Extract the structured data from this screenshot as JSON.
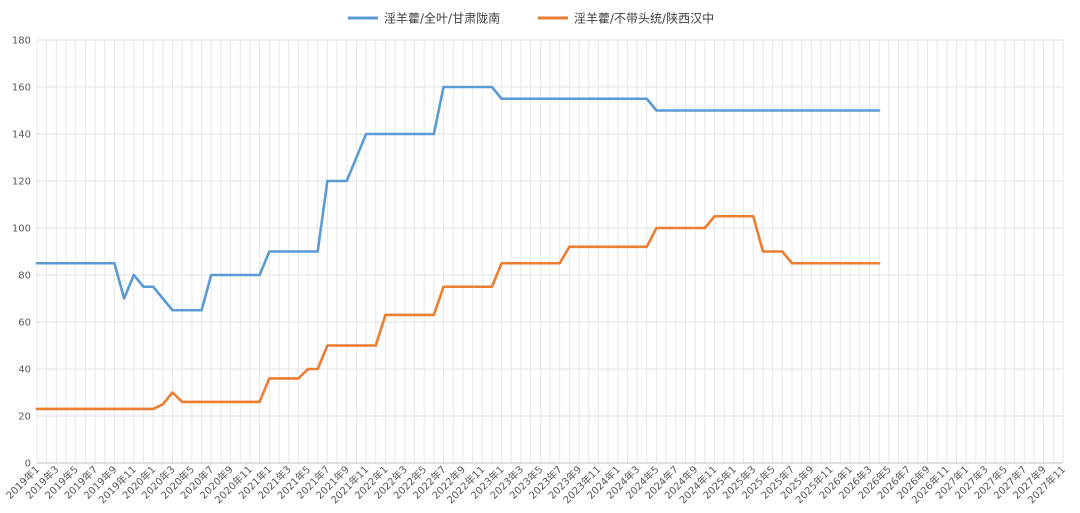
{
  "chart_data": {
    "type": "line",
    "title": "",
    "xlabel": "",
    "ylabel": "",
    "ylim": [
      0,
      180
    ],
    "y_ticks": [
      0,
      20,
      40,
      60,
      80,
      100,
      120,
      140,
      160,
      180
    ],
    "grid": true,
    "legend_position": "top",
    "x_categories": [
      "2019年1",
      "2019年3",
      "2019年5",
      "2019年7",
      "2019年9",
      "2019年11",
      "2020年1",
      "2020年3",
      "2020年5",
      "2020年7",
      "2020年9",
      "2020年11",
      "2021年1",
      "2021年3",
      "2021年5",
      "2021年7",
      "2021年9",
      "2021年11",
      "2022年1",
      "2022年3",
      "2022年5",
      "2022年7",
      "2022年9",
      "2022年11",
      "2023年1",
      "2023年3",
      "2023年5",
      "2023年7",
      "2023年9",
      "2023年11",
      "2024年1",
      "2024年3",
      "2024年5",
      "2024年7",
      "2024年9",
      "2024年11",
      "2025年1",
      "2025年3",
      "2025年5",
      "2025年7",
      "2025年9",
      "2025年11",
      "2026年1",
      "2026年3",
      "2026年5",
      "2026年7",
      "2026年9",
      "2026年11",
      "2027年1",
      "2027年3",
      "2027年5",
      "2027年7",
      "2027年9",
      "2027年11"
    ],
    "x_start": "2019-01",
    "series": [
      {
        "name": "淫羊藿/全叶/甘肃陇南",
        "color": "#5B9BD5",
        "points": [
          [
            "2019-01",
            85
          ],
          [
            "2019-09",
            85
          ],
          [
            "2019-10",
            70
          ],
          [
            "2019-11",
            80
          ],
          [
            "2019-12",
            75
          ],
          [
            "2020-01",
            75
          ],
          [
            "2020-03",
            65
          ],
          [
            "2020-06",
            65
          ],
          [
            "2020-07",
            80
          ],
          [
            "2020-12",
            80
          ],
          [
            "2021-01",
            90
          ],
          [
            "2021-06",
            90
          ],
          [
            "2021-07",
            120
          ],
          [
            "2021-09",
            120
          ],
          [
            "2021-11",
            140
          ],
          [
            "2022-06",
            140
          ],
          [
            "2022-07",
            160
          ],
          [
            "2022-12",
            160
          ],
          [
            "2023-01",
            155
          ],
          [
            "2024-04",
            155
          ],
          [
            "2024-05",
            150
          ],
          [
            "2026-04",
            150
          ]
        ]
      },
      {
        "name": "淫羊藿/不带头统/陕西汉中",
        "color": "#ED7D31",
        "points": [
          [
            "2019-01",
            23
          ],
          [
            "2020-01",
            23
          ],
          [
            "2020-02",
            25
          ],
          [
            "2020-03",
            30
          ],
          [
            "2020-04",
            26
          ],
          [
            "2020-12",
            26
          ],
          [
            "2021-01",
            36
          ],
          [
            "2021-04",
            36
          ],
          [
            "2021-05",
            40
          ],
          [
            "2021-06",
            40
          ],
          [
            "2021-07",
            50
          ],
          [
            "2021-12",
            50
          ],
          [
            "2022-01",
            63
          ],
          [
            "2022-06",
            63
          ],
          [
            "2022-07",
            75
          ],
          [
            "2022-12",
            75
          ],
          [
            "2023-01",
            85
          ],
          [
            "2023-07",
            85
          ],
          [
            "2023-08",
            92
          ],
          [
            "2024-04",
            92
          ],
          [
            "2024-05",
            100
          ],
          [
            "2024-10",
            100
          ],
          [
            "2024-11",
            105
          ],
          [
            "2025-03",
            105
          ],
          [
            "2025-04",
            90
          ],
          [
            "2025-06",
            90
          ],
          [
            "2025-07",
            85
          ],
          [
            "2026-04",
            85
          ]
        ]
      }
    ]
  }
}
